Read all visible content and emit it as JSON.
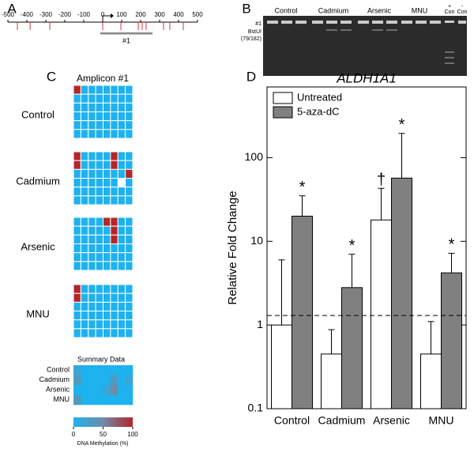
{
  "panel_labels": [
    "A",
    "B",
    "C",
    "D"
  ],
  "gene_map": {
    "xlim": [
      -500,
      500
    ],
    "xticks": [
      -500,
      -400,
      -300,
      -200,
      -100,
      0,
      100,
      200,
      300,
      400,
      500
    ],
    "sites": [
      -450,
      -383,
      -279,
      0,
      96,
      188,
      208,
      229,
      321,
      354,
      425
    ],
    "amplicon": [
      -13,
      263
    ],
    "amplicon_label": "#1"
  },
  "gel": {
    "lanes": [
      "Control",
      "Cadmium",
      "Arsenic",
      "MNU"
    ],
    "controls": [
      {
        "sign": "+",
        "label": "Con"
      },
      {
        "sign": "-",
        "label": "Con"
      }
    ],
    "band_labels": [
      "#1",
      "BstUI",
      "(79/182)"
    ]
  },
  "chart_data": [
    {
      "type": "heatmap",
      "title": "Amplicon #1",
      "groups": [
        {
          "name": "Control",
          "values": [
            [
              100,
              0,
              0,
              0,
              0,
              0,
              0,
              0
            ],
            [
              0,
              0,
              0,
              0,
              0,
              0,
              0,
              0
            ],
            [
              0,
              0,
              0,
              0,
              0,
              0,
              0,
              0
            ],
            [
              0,
              0,
              0,
              0,
              0,
              0,
              0,
              0
            ],
            [
              0,
              0,
              0,
              0,
              0,
              0,
              0,
              0
            ],
            [
              0,
              0,
              0,
              0,
              0,
              0,
              0,
              0
            ]
          ]
        },
        {
          "name": "Cadmium",
          "values": [
            [
              100,
              0,
              0,
              0,
              0,
              100,
              0,
              0
            ],
            [
              100,
              0,
              0,
              0,
              0,
              100,
              0,
              0
            ],
            [
              0,
              0,
              0,
              0,
              0,
              0,
              0,
              100
            ],
            [
              0,
              0,
              0,
              0,
              0,
              0,
              null,
              0
            ],
            [
              0,
              0,
              0,
              0,
              0,
              0,
              0,
              0
            ],
            [
              0,
              0,
              0,
              0,
              0,
              0,
              0,
              0
            ]
          ]
        },
        {
          "name": "Arsenic",
          "values": [
            [
              0,
              0,
              0,
              0,
              100,
              100,
              0,
              0
            ],
            [
              0,
              0,
              0,
              0,
              0,
              100,
              0,
              0
            ],
            [
              0,
              0,
              0,
              0,
              0,
              100,
              0,
              0
            ],
            [
              0,
              0,
              0,
              0,
              0,
              0,
              0,
              0
            ],
            [
              0,
              0,
              0,
              0,
              0,
              0,
              0,
              0
            ],
            [
              0,
              0,
              0,
              0,
              0,
              0,
              0,
              0
            ]
          ]
        },
        {
          "name": "MNU",
          "values": [
            [
              100,
              0,
              0,
              0,
              0,
              0,
              0,
              0
            ],
            [
              100,
              0,
              0,
              0,
              0,
              0,
              0,
              0
            ],
            [
              0,
              0,
              0,
              0,
              0,
              0,
              0,
              0
            ],
            [
              0,
              0,
              0,
              0,
              0,
              0,
              0,
              0
            ],
            [
              0,
              0,
              0,
              0,
              0,
              0,
              0,
              0
            ],
            [
              0,
              0,
              0,
              0,
              0,
              0,
              0,
              0
            ]
          ]
        }
      ],
      "summary": {
        "title": "Summary Data",
        "row_labels": [
          "Control",
          "Cadmium",
          "Arsenic",
          "MNU"
        ],
        "values": [
          [
            17,
            0,
            0,
            0,
            0,
            0,
            0,
            0
          ],
          [
            33,
            0,
            0,
            0,
            0,
            33,
            0,
            17
          ],
          [
            0,
            0,
            0,
            0,
            17,
            50,
            0,
            0
          ],
          [
            33,
            0,
            0,
            0,
            0,
            0,
            0,
            0
          ]
        ]
      },
      "colorbar": {
        "label": "DNA Methylation (%)",
        "lim": [
          0,
          100
        ],
        "ticks": [
          0,
          50,
          100
        ],
        "colors": [
          "#1eb2ee",
          "#6f8ca6",
          "#b3262a"
        ]
      }
    },
    {
      "type": "bar",
      "title": "ALDH1A1",
      "ylabel": "Relative Fold Change",
      "categories": [
        "Control",
        "Cadmium",
        "Arsenic",
        "MNU"
      ],
      "series": [
        {
          "name": "Untreated",
          "color": "#ffffff",
          "values": [
            1,
            0.45,
            18,
            0.45
          ],
          "errors": [
            5,
            0.43,
            25,
            0.65
          ],
          "annotations": [
            null,
            null,
            "†",
            null
          ]
        },
        {
          "name": "5-aza-dC",
          "color": "#808080",
          "values": [
            20,
            2.8,
            57,
            4.2
          ],
          "errors": [
            15,
            4.2,
            138,
            3.0
          ],
          "annotations": [
            "*",
            "*",
            "*",
            "*"
          ]
        }
      ],
      "log_scale": true,
      "ylim": [
        0.1,
        700
      ],
      "yticks": [
        0.1,
        1,
        10,
        100
      ],
      "reference_line": 1.3,
      "legend": "upper left"
    }
  ]
}
